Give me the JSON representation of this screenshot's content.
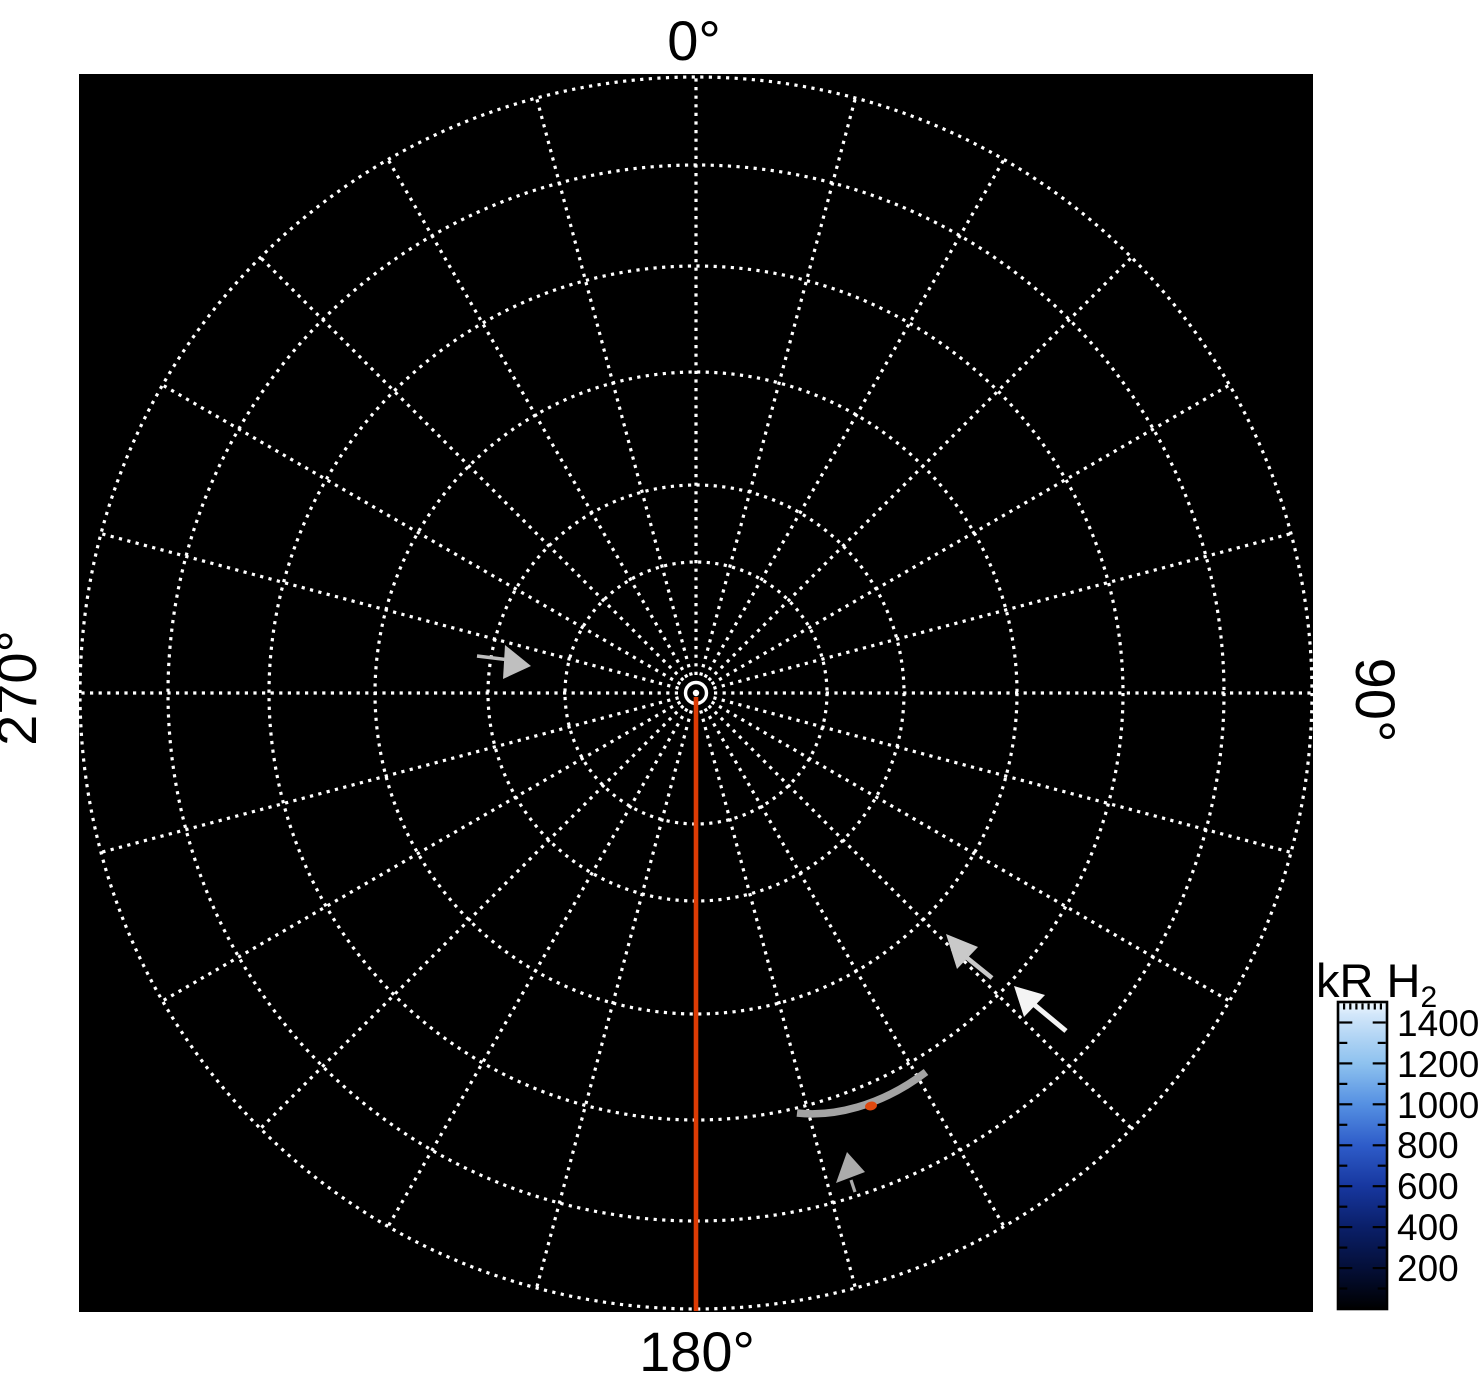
{
  "figure": {
    "kind": "polar auroral emission map",
    "background": "#ffffff",
    "plot_background": "#000000",
    "grid_color": "#ffffff"
  },
  "axis_labels": {
    "top": "0°",
    "right": "90°",
    "bottom": "180°",
    "left": "270°"
  },
  "colorbar": {
    "title": "kR H",
    "title_sub": "2",
    "tick_labels": [
      "1400",
      "1200",
      "1000",
      "800",
      "600",
      "400",
      "200"
    ],
    "range_min": 0,
    "range_max": 1500
  },
  "colors": {
    "meridian_red": "#dd3b04",
    "arc_gray": "#a3a3a3",
    "spot_orange": "#e0490f",
    "arrow_light_gray": "#c9c9c9",
    "arrow_white": "#f4f4f4",
    "arrow_mid_gray": "#bfbfbf",
    "arrowhead_gray": "#ababab"
  },
  "chart_data": {
    "type": "heatmap",
    "projection": "polar",
    "title": "",
    "angle_tick_labels": [
      "0°",
      "90°",
      "180°",
      "270°"
    ],
    "spoke_step_deg": 15,
    "ring_radii_fraction_of_disk": [
      0.213,
      0.338,
      0.521,
      0.693,
      0.857,
      1.0
    ],
    "colorbar": {
      "label": "kR H2",
      "ticks": [
        200,
        400,
        600,
        800,
        1000,
        1200,
        1400
      ],
      "min": 0,
      "max": 1500,
      "colormap": "black to blue to white",
      "position": "right"
    },
    "field_values": "background emission below color threshold (rendered black)",
    "features": [
      {
        "name": "prime-meridian-line",
        "angle_deg": 180,
        "color": "#dd3b04",
        "extent": "pole to outer ring"
      },
      {
        "name": "auroral-arc-segment",
        "color": "#a3a3a3",
        "location": "lower-right quadrant, between 4th and 5th rings"
      },
      {
        "name": "bright-spot-on-arc",
        "color": "#e0490f"
      },
      {
        "name": "flow-arrow-toward-pole-small",
        "color": "#bfbfbf",
        "location": "left of pole, pointing right"
      },
      {
        "name": "flow-arrow-upper",
        "color": "#c9c9c9",
        "location": "lower-right quadrant, pointing up-left"
      },
      {
        "name": "flow-arrow-lower",
        "color": "#f4f4f4",
        "location": "lower-right quadrant, pointing up-left"
      },
      {
        "name": "arc-pointer-arrowhead",
        "color": "#ababab",
        "location": "below arc segment"
      }
    ]
  }
}
